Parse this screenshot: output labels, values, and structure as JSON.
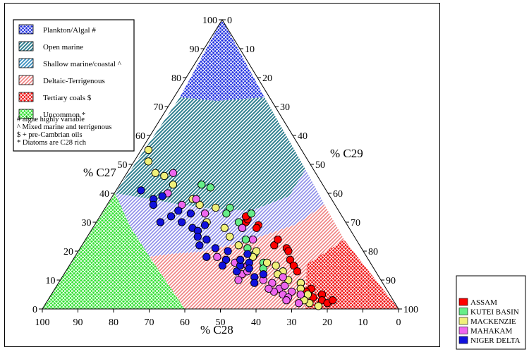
{
  "chart_data": {
    "type": "ternary-scatter",
    "axes": {
      "bottom": {
        "label": "% C28",
        "ticks": [
          "100",
          "90",
          "80",
          "70",
          "60",
          "50",
          "40",
          "30",
          "20",
          "10",
          "0"
        ]
      },
      "left": {
        "label": "% C27",
        "ticks": [
          "0",
          "10",
          "20",
          "30",
          "40",
          "50",
          "60",
          "70",
          "80",
          "90",
          "100"
        ]
      },
      "right": {
        "label": "% C29",
        "ticks": [
          "0",
          "10",
          "20",
          "30",
          "40",
          "50",
          "60",
          "70",
          "80",
          "90",
          "100"
        ]
      }
    },
    "regions": [
      {
        "name": "Plankton/Algal #",
        "color": "#1f2fe0"
      },
      {
        "name": "Open marine",
        "color": "#2f7f8f"
      },
      {
        "name": "Shallow marine/coastal ^",
        "color": "#3a8fc0"
      },
      {
        "name": "Deltaic-Terrigenous",
        "color": "#f07f7f"
      },
      {
        "name": "Tertiary coals $",
        "color": "#f01010"
      },
      {
        "name": "Uncommon *",
        "color": "#30e030"
      }
    ],
    "notes": [
      "# algae highly variable",
      "^ Mixed marine and terrigenous",
      "$ + pre-Cambrian oils",
      "* Diatoms are C28 rich"
    ],
    "series": [
      {
        "name": "ASSAM",
        "color": "#ff0000",
        "points": [
          [
            30,
            28,
            42
          ],
          [
            31,
            27,
            42
          ],
          [
            32,
            27,
            41
          ],
          [
            29,
            25,
            46
          ],
          [
            28,
            26,
            46
          ],
          [
            22,
            24,
            54
          ],
          [
            24,
            22,
            54
          ],
          [
            21,
            21,
            58
          ],
          [
            20,
            21,
            59
          ],
          [
            17,
            22,
            61
          ],
          [
            15,
            22,
            63
          ],
          [
            13,
            22,
            65
          ],
          [
            9,
            23,
            68
          ],
          [
            7,
            21,
            72
          ],
          [
            6,
            23,
            71
          ],
          [
            4,
            22,
            74
          ],
          [
            5,
            19,
            76
          ],
          [
            3,
            20,
            77
          ],
          [
            2,
            19,
            79
          ],
          [
            3,
            17,
            80
          ]
        ]
      },
      {
        "name": "KUTEI BASIN",
        "color": "#66ee88",
        "points": [
          [
            43,
            34,
            23
          ],
          [
            42,
            32,
            26
          ],
          [
            35,
            30,
            35
          ],
          [
            33,
            32,
            35
          ],
          [
            33,
            25,
            42
          ],
          [
            30,
            30,
            40
          ],
          [
            28,
            30,
            42
          ],
          [
            24,
            31,
            45
          ],
          [
            21,
            32,
            47
          ],
          [
            19,
            31,
            50
          ],
          [
            16,
            30,
            54
          ],
          [
            14,
            31,
            55
          ]
        ]
      },
      {
        "name": "MACKENZIE",
        "color": "#f0f07a",
        "points": [
          [
            55,
            43,
            2
          ],
          [
            51,
            45,
            4
          ],
          [
            47,
            45,
            8
          ],
          [
            46,
            43,
            11
          ],
          [
            43,
            42,
            15
          ],
          [
            38,
            39,
            23
          ],
          [
            36,
            38,
            26
          ],
          [
            35,
            34,
            31
          ],
          [
            30,
            39,
            31
          ],
          [
            28,
            35,
            37
          ],
          [
            25,
            35,
            40
          ],
          [
            22,
            34,
            44
          ],
          [
            20,
            30,
            50
          ],
          [
            18,
            32,
            50
          ],
          [
            16,
            29,
            55
          ],
          [
            15,
            27,
            58
          ],
          [
            13,
            26,
            61
          ],
          [
            12,
            28,
            60
          ],
          [
            10,
            26,
            64
          ],
          [
            9,
            23,
            68
          ],
          [
            7,
            24,
            69
          ],
          [
            5,
            23,
            72
          ],
          [
            2,
            24,
            74
          ],
          [
            3,
            25,
            72
          ],
          [
            1,
            22,
            77
          ]
        ]
      },
      {
        "name": "MAHAKAM",
        "color": "#ee66ee",
        "points": [
          [
            47,
            40,
            13
          ],
          [
            40,
            45,
            15
          ],
          [
            38,
            38,
            24
          ],
          [
            36,
            43,
            21
          ],
          [
            33,
            38,
            29
          ],
          [
            28,
            30,
            42
          ],
          [
            24,
            29,
            47
          ],
          [
            18,
            42,
            40
          ],
          [
            16,
            38,
            46
          ],
          [
            15,
            35,
            50
          ],
          [
            12,
            38,
            50
          ],
          [
            10,
            40,
            50
          ],
          [
            13,
            36,
            51
          ],
          [
            10,
            33,
            57
          ],
          [
            9,
            31,
            60
          ],
          [
            7,
            30,
            63
          ],
          [
            6,
            32,
            62
          ],
          [
            5,
            30,
            65
          ],
          [
            11,
            27,
            62
          ],
          [
            8,
            28,
            64
          ],
          [
            6,
            27,
            67
          ],
          [
            7,
            33,
            60
          ],
          [
            4,
            29,
            67
          ],
          [
            3,
            30,
            67
          ],
          [
            5,
            25,
            70
          ],
          [
            2,
            27,
            71
          ]
        ]
      },
      {
        "name": "NIGER DELTA",
        "color": "#1111dd",
        "points": [
          [
            41,
            52,
            7
          ],
          [
            38,
            50,
            12
          ],
          [
            39,
            47,
            14
          ],
          [
            36,
            51,
            13
          ],
          [
            32,
            48,
            20
          ],
          [
            34,
            45,
            21
          ],
          [
            30,
            46,
            24
          ],
          [
            33,
            42,
            25
          ],
          [
            29,
            40,
            31
          ],
          [
            30,
            52,
            18
          ],
          [
            28,
            44,
            28
          ],
          [
            27,
            43,
            30
          ],
          [
            25,
            44,
            31
          ],
          [
            24,
            42,
            34
          ],
          [
            22,
            45,
            33
          ],
          [
            21,
            41,
            38
          ],
          [
            18,
            45,
            37
          ],
          [
            17,
            40,
            43
          ],
          [
            20,
            38,
            42
          ],
          [
            15,
            42,
            43
          ],
          [
            13,
            39,
            48
          ],
          [
            15,
            37,
            48
          ],
          [
            11,
            35,
            54
          ],
          [
            9,
            36,
            55
          ],
          [
            12,
            32,
            56
          ],
          [
            16,
            34,
            50
          ],
          [
            19,
            33,
            48
          ],
          [
            17,
            36,
            47
          ],
          [
            14,
            35,
            51
          ]
        ]
      }
    ]
  }
}
